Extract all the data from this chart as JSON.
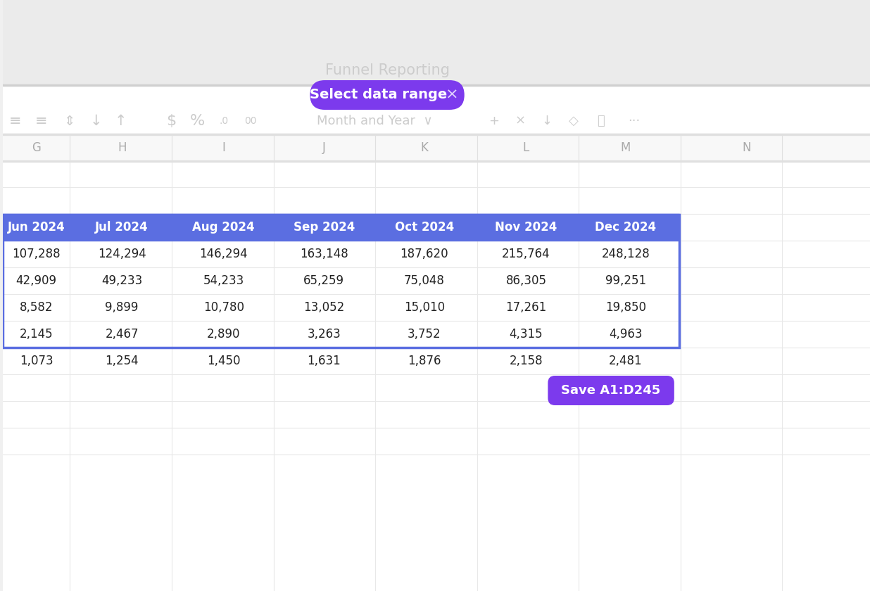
{
  "bg_top": "#f0f0f0",
  "bg_toolbar": "#ffffff",
  "bg_header_bar": "#f8f8f8",
  "bg_sheet": "#ffffff",
  "grid_color": "#e0e0e0",
  "col_header_bg": "#ffffff",
  "col_header_text": "#aaaaaa",
  "funnel_reporting_text": "Funnel Reporting",
  "funnel_reporting_color": "#cccccc",
  "select_btn_text": "Select data range",
  "select_btn_bg": "#7c3aed",
  "select_btn_text_color": "#ffffff",
  "save_btn_text": "Save A1:D245",
  "save_btn_bg": "#7c3aed",
  "save_btn_text_color": "#ffffff",
  "month_year_text": "Month and Year",
  "toolbar_icon_color": "#cccccc",
  "col_headers": [
    "G",
    "H",
    "I",
    "J",
    "K",
    "L",
    "M",
    "N"
  ],
  "table_headers": [
    "Jun 2024",
    "Jul 2024",
    "Aug 2024",
    "Sep 2024",
    "Oct 2024",
    "Nov 2024",
    "Dec 2024"
  ],
  "table_header_bg": "#5b6ee1",
  "table_header_text": "#ffffff",
  "table_data": [
    [
      "107,288",
      "124,294",
      "146,294",
      "163,148",
      "187,620",
      "215,764",
      "248,128"
    ],
    [
      "42,909",
      "49,233",
      "54,233",
      "65,259",
      "75,048",
      "86,305",
      "99,251"
    ],
    [
      "8,582",
      "9,899",
      "10,780",
      "13,052",
      "15,010",
      "17,261",
      "19,850"
    ],
    [
      "2,145",
      "2,467",
      "2,890",
      "3,263",
      "3,752",
      "4,315",
      "4,963"
    ],
    [
      "1,073",
      "1,254",
      "1,450",
      "1,631",
      "1,876",
      "2,158",
      "2,481"
    ]
  ],
  "table_data_color": "#222222",
  "selected_border_color": "#5b6ee1",
  "figsize": [
    12.36,
    8.4
  ],
  "dpi": 100
}
